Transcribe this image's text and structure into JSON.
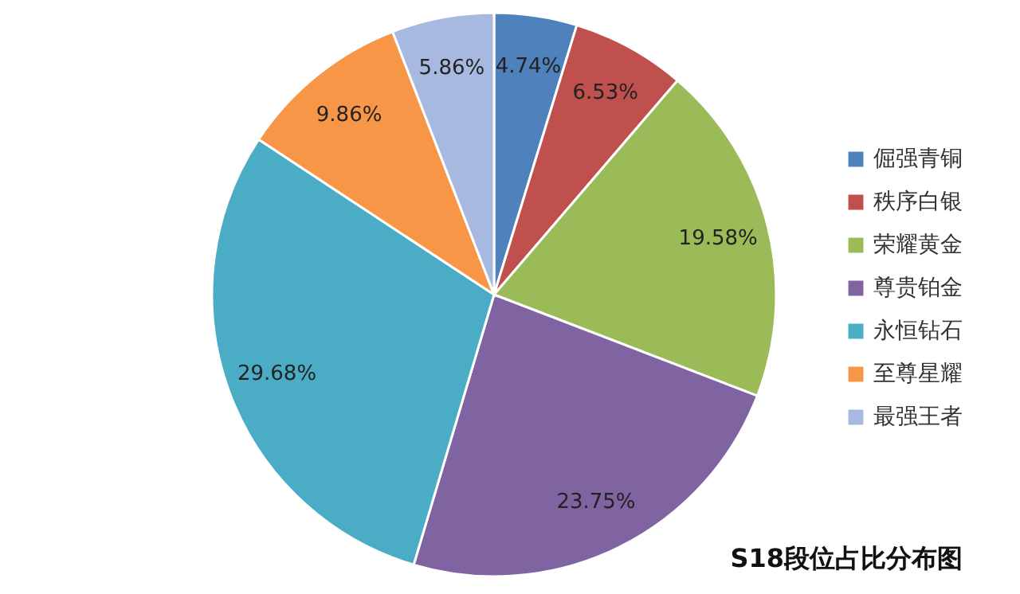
{
  "chart_data": {
    "type": "pie",
    "title": "S18段位占比分布图",
    "categories": [
      "倔强青铜",
      "秩序白银",
      "荣耀黄金",
      "尊贵铂金",
      "永恒钻石",
      "至尊星耀",
      "最强王者"
    ],
    "values": [
      4.74,
      6.53,
      19.58,
      23.75,
      29.68,
      9.86,
      5.86
    ],
    "colors": [
      "#4f81bd",
      "#c0504d",
      "#9bbb59",
      "#8064a2",
      "#4bacc6",
      "#f79646",
      "#a7b9e0"
    ],
    "value_labels": [
      "4.74%",
      "6.53%",
      "19.58%",
      "23.75%",
      "29.68%",
      "9.86%",
      "5.86%"
    ],
    "legend": "right"
  }
}
